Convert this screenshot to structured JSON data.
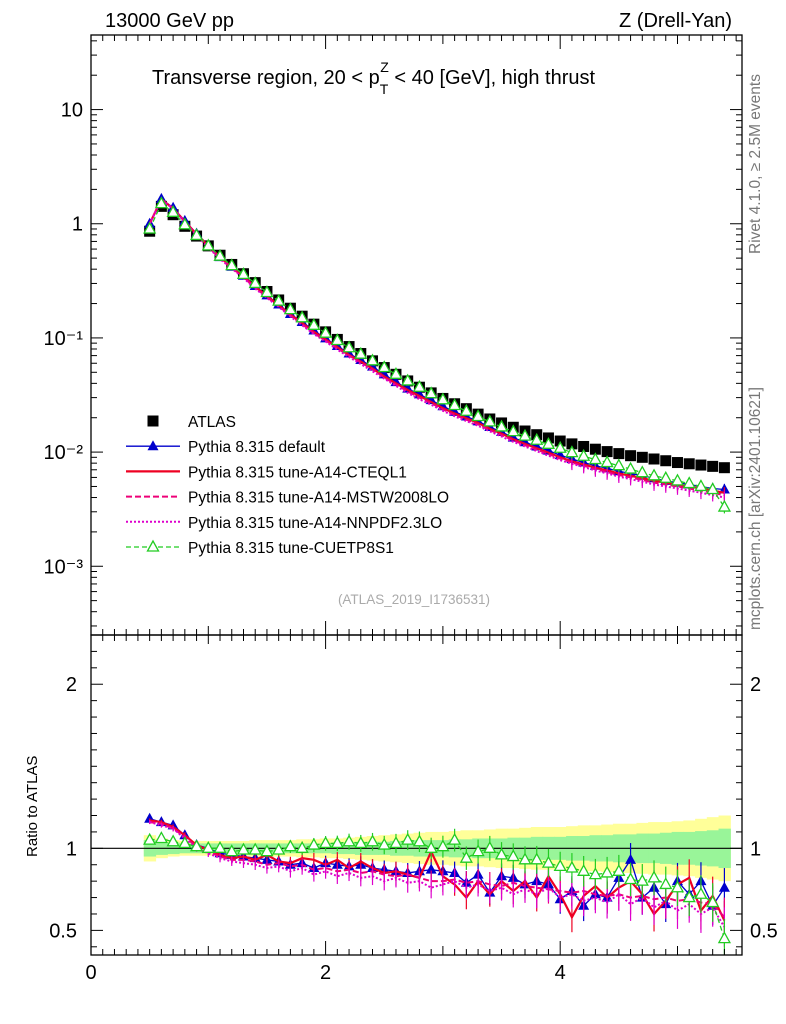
{
  "header": {
    "left": "13000 GeV pp",
    "right": "Z (Drell-Yan)"
  },
  "plot_title": {
    "pre": "Transverse region, 20 < p",
    "sub": "T",
    "sup": "Z",
    "post": " < 40 [GeV], high thrust"
  },
  "side_labels": {
    "rivet": "Rivet 4.1.0, ≥ 2.5M events",
    "mcplots": "mcplots.cern.ch [arXiv:2401.10621]"
  },
  "analysis_id": "(ATLAS_2019_I1736531)",
  "ratio_ylabel": "Ratio to ATLAS",
  "colors": {
    "atlas": "#000000",
    "default": "#0000cc",
    "cteql1": "#ee0022",
    "mstw": "#ee0077",
    "nnpdf": "#dd00cc",
    "cuetp8s1": "#22cc22",
    "band_inner": "#99f599",
    "band_outer": "#ffff99"
  },
  "chart_data": [
    {
      "type": "scatter",
      "panel": "main",
      "yscale": "log",
      "xlim": [
        0,
        5.55
      ],
      "ylim": [
        0.00025,
        45
      ],
      "y_ticks": [
        "10⁻³",
        "10⁻²",
        "10⁻¹",
        "1",
        "10"
      ],
      "y_tick_values": [
        0.001,
        0.01,
        0.1,
        1,
        10
      ],
      "x": [
        0.5,
        0.6,
        0.7,
        0.8,
        0.9,
        1.0,
        1.1,
        1.2,
        1.3,
        1.4,
        1.5,
        1.6,
        1.7,
        1.8,
        1.9,
        2.0,
        2.1,
        2.2,
        2.3,
        2.4,
        2.5,
        2.6,
        2.7,
        2.8,
        2.9,
        3.0,
        3.1,
        3.2,
        3.3,
        3.4,
        3.5,
        3.6,
        3.7,
        3.8,
        3.9,
        4.0,
        4.1,
        4.2,
        4.3,
        4.4,
        4.5,
        4.6,
        4.7,
        4.8,
        4.9,
        5.0,
        5.1,
        5.2,
        5.3,
        5.4
      ],
      "series": [
        {
          "name": "ATLAS",
          "style": "atlas",
          "values": [
            0.86,
            1.42,
            1.2,
            0.95,
            0.78,
            0.64,
            0.53,
            0.44,
            0.365,
            0.305,
            0.255,
            0.215,
            0.182,
            0.155,
            0.132,
            0.113,
            0.097,
            0.084,
            0.073,
            0.063,
            0.055,
            0.048,
            0.042,
            0.037,
            0.033,
            0.0295,
            0.0265,
            0.024,
            0.0215,
            0.0195,
            0.018,
            0.0165,
            0.0153,
            0.0142,
            0.0133,
            0.0125,
            0.0118,
            0.0112,
            0.0106,
            0.0101,
            0.0097,
            0.0093,
            0.009,
            0.0087,
            0.0084,
            0.0081,
            0.0079,
            0.0077,
            0.0075,
            0.0073
          ]
        },
        {
          "name": "Pythia 8.315 default",
          "style": "default",
          "values": [
            1.0,
            1.65,
            1.38,
            1.06,
            0.82,
            0.65,
            0.51,
            0.42,
            0.35,
            0.285,
            0.236,
            0.196,
            0.162,
            0.138,
            0.116,
            0.099,
            0.085,
            0.073,
            0.064,
            0.056,
            0.048,
            0.041,
            0.036,
            0.032,
            0.0285,
            0.0252,
            0.0225,
            0.0205,
            0.0186,
            0.0166,
            0.015,
            0.0134,
            0.0122,
            0.0112,
            0.0103,
            0.0094,
            0.0087,
            0.0081,
            0.0076,
            0.0072,
            0.0068,
            0.0065,
            0.0062,
            0.0059,
            0.0056,
            0.0054,
            0.0052,
            0.005,
            0.0048,
            0.0047
          ]
        },
        {
          "name": "Pythia 8.315 tune-A14-CTEQL1",
          "style": "cteql1",
          "values": [
            1.0,
            1.64,
            1.36,
            1.05,
            0.81,
            0.64,
            0.51,
            0.415,
            0.345,
            0.28,
            0.233,
            0.193,
            0.16,
            0.135,
            0.113,
            0.097,
            0.083,
            0.071,
            0.062,
            0.054,
            0.046,
            0.04,
            0.035,
            0.031,
            0.0275,
            0.0243,
            0.0218,
            0.0198,
            0.018,
            0.016,
            0.0145,
            0.013,
            0.0118,
            0.0108,
            0.0099,
            0.009,
            0.0083,
            0.0078,
            0.0073,
            0.0069,
            0.0065,
            0.0062,
            0.0059,
            0.0056,
            0.0054,
            0.0052,
            0.005,
            0.0048,
            0.0046,
            0.0044
          ]
        },
        {
          "name": "Pythia 8.315 tune-A14-MSTW2008LO",
          "style": "mstw",
          "values": [
            1.0,
            1.63,
            1.36,
            1.04,
            0.8,
            0.63,
            0.5,
            0.41,
            0.34,
            0.275,
            0.228,
            0.19,
            0.157,
            0.132,
            0.11,
            0.095,
            0.081,
            0.07,
            0.061,
            0.053,
            0.045,
            0.039,
            0.034,
            0.03,
            0.0268,
            0.0237,
            0.0212,
            0.0192,
            0.0175,
            0.0156,
            0.0141,
            0.0127,
            0.0115,
            0.0105,
            0.0096,
            0.0088,
            0.0081,
            0.0076,
            0.0071,
            0.0067,
            0.0063,
            0.006,
            0.0057,
            0.0054,
            0.0052,
            0.005,
            0.0048,
            0.0046,
            0.0044,
            0.0042
          ]
        },
        {
          "name": "Pythia 8.315 tune-A14-NNPDF2.3LO",
          "style": "nnpdf",
          "values": [
            1.0,
            1.62,
            1.35,
            1.03,
            0.79,
            0.62,
            0.49,
            0.405,
            0.335,
            0.27,
            0.224,
            0.187,
            0.154,
            0.129,
            0.108,
            0.093,
            0.079,
            0.068,
            0.059,
            0.051,
            0.044,
            0.038,
            0.033,
            0.029,
            0.026,
            0.023,
            0.0206,
            0.0187,
            0.017,
            0.0152,
            0.0137,
            0.0123,
            0.0112,
            0.0102,
            0.0093,
            0.0085,
            0.0079,
            0.0074,
            0.0069,
            0.0065,
            0.0061,
            0.0058,
            0.0055,
            0.0052,
            0.005,
            0.0048,
            0.0046,
            0.0044,
            0.0042,
            0.004
          ]
        },
        {
          "name": "Pythia 8.315 tune-CUETP8S1",
          "style": "cuetp8s1",
          "values": [
            0.9,
            1.5,
            1.26,
            0.98,
            0.79,
            0.64,
            0.52,
            0.43,
            0.36,
            0.3,
            0.25,
            0.21,
            0.177,
            0.15,
            0.129,
            0.11,
            0.095,
            0.082,
            0.072,
            0.063,
            0.055,
            0.048,
            0.042,
            0.037,
            0.0325,
            0.0287,
            0.0256,
            0.0228,
            0.0205,
            0.0184,
            0.0166,
            0.0151,
            0.0138,
            0.0127,
            0.0117,
            0.0108,
            0.0099,
            0.0092,
            0.0086,
            0.0081,
            0.0076,
            0.0071,
            0.0066,
            0.0062,
            0.0059,
            0.0056,
            0.0053,
            0.005,
            0.0047,
            0.0033
          ]
        }
      ]
    },
    {
      "type": "line",
      "panel": "ratio",
      "xlabel": "",
      "ylabel": "Ratio to ATLAS",
      "xlim": [
        0,
        5.55
      ],
      "ylim": [
        0.35,
        2.3
      ],
      "x_ticks": [
        "0",
        "2",
        "4"
      ],
      "x_tick_values": [
        0,
        2,
        4
      ],
      "y_ticks": [
        "0.5",
        "1",
        "2"
      ],
      "y_tick_values": [
        0.5,
        1,
        2
      ],
      "x": [
        0.5,
        0.6,
        0.7,
        0.8,
        0.9,
        1.0,
        1.1,
        1.2,
        1.3,
        1.4,
        1.5,
        1.6,
        1.7,
        1.8,
        1.9,
        2.0,
        2.1,
        2.2,
        2.3,
        2.4,
        2.5,
        2.6,
        2.7,
        2.8,
        2.9,
        3.0,
        3.1,
        3.2,
        3.3,
        3.4,
        3.5,
        3.6,
        3.7,
        3.8,
        3.9,
        4.0,
        4.1,
        4.2,
        4.3,
        4.4,
        4.5,
        4.6,
        4.7,
        4.8,
        4.9,
        5.0,
        5.1,
        5.2,
        5.3,
        5.4
      ],
      "band_inner": [
        0.05,
        0.04,
        0.035,
        0.03,
        0.03,
        0.03,
        0.03,
        0.03,
        0.03,
        0.03,
        0.03,
        0.03,
        0.03,
        0.03,
        0.03,
        0.03,
        0.035,
        0.035,
        0.04,
        0.04,
        0.04,
        0.045,
        0.045,
        0.05,
        0.05,
        0.05,
        0.055,
        0.055,
        0.06,
        0.06,
        0.06,
        0.065,
        0.065,
        0.07,
        0.07,
        0.07,
        0.075,
        0.075,
        0.08,
        0.08,
        0.085,
        0.085,
        0.09,
        0.09,
        0.095,
        0.1,
        0.1,
        0.105,
        0.11,
        0.12
      ],
      "band_outer": [
        0.08,
        0.06,
        0.05,
        0.045,
        0.045,
        0.045,
        0.045,
        0.045,
        0.045,
        0.05,
        0.05,
        0.05,
        0.05,
        0.055,
        0.055,
        0.06,
        0.06,
        0.065,
        0.07,
        0.075,
        0.08,
        0.085,
        0.09,
        0.095,
        0.1,
        0.1,
        0.105,
        0.11,
        0.11,
        0.115,
        0.12,
        0.12,
        0.125,
        0.13,
        0.13,
        0.13,
        0.135,
        0.14,
        0.14,
        0.145,
        0.15,
        0.15,
        0.155,
        0.16,
        0.16,
        0.165,
        0.17,
        0.18,
        0.19,
        0.2
      ],
      "series": [
        {
          "name": "Pythia 8.315 default",
          "style": "default",
          "values": [
            1.18,
            1.16,
            1.14,
            1.08,
            1.02,
            1.0,
            0.97,
            0.96,
            0.95,
            0.94,
            0.93,
            0.92,
            0.9,
            0.91,
            0.88,
            0.91,
            0.9,
            0.89,
            0.9,
            0.88,
            0.87,
            0.86,
            0.85,
            0.86,
            0.87,
            0.86,
            0.85,
            0.79,
            0.84,
            0.73,
            0.83,
            0.82,
            0.78,
            0.8,
            0.78,
            0.69,
            0.74,
            0.65,
            0.72,
            0.7,
            0.82,
            0.93,
            0.7,
            0.76,
            0.66,
            0.8,
            0.72,
            0.8,
            0.65,
            0.76
          ]
        },
        {
          "name": "Pythia 8.315 tune-A14-CTEQL1",
          "style": "cteql1",
          "values": [
            1.17,
            1.16,
            1.13,
            1.08,
            1.02,
            0.99,
            0.96,
            0.94,
            0.95,
            0.93,
            0.96,
            0.92,
            0.91,
            0.94,
            0.93,
            0.9,
            0.93,
            0.88,
            0.92,
            0.88,
            0.85,
            0.86,
            0.84,
            0.82,
            0.98,
            0.83,
            0.78,
            0.7,
            0.8,
            0.72,
            0.8,
            0.74,
            0.8,
            0.7,
            0.83,
            0.72,
            0.58,
            0.71,
            0.77,
            0.7,
            0.76,
            0.8,
            0.72,
            0.6,
            0.68,
            0.78,
            0.82,
            0.62,
            0.71,
            0.56
          ]
        },
        {
          "name": "Pythia 8.315 tune-A14-MSTW2008LO",
          "style": "mstw",
          "values": [
            1.16,
            1.15,
            1.12,
            1.07,
            1.01,
            0.98,
            0.95,
            0.93,
            0.93,
            0.92,
            0.9,
            0.91,
            0.89,
            0.9,
            0.87,
            0.88,
            0.86,
            0.87,
            0.85,
            0.86,
            0.84,
            0.83,
            0.84,
            0.82,
            0.8,
            0.8,
            0.81,
            0.79,
            0.8,
            0.78,
            0.77,
            0.79,
            0.77,
            0.76,
            0.75,
            0.74,
            0.73,
            0.74,
            0.72,
            0.71,
            0.72,
            0.7,
            0.71,
            0.69,
            0.7,
            0.68,
            0.69,
            0.67,
            0.66,
            0.58
          ]
        },
        {
          "name": "Pythia 8.315 tune-A14-NNPDF2.3LO",
          "style": "nnpdf",
          "values": [
            1.16,
            1.14,
            1.12,
            1.06,
            1.0,
            0.97,
            0.94,
            0.92,
            0.91,
            0.9,
            0.88,
            0.89,
            0.86,
            0.88,
            0.84,
            0.86,
            0.83,
            0.85,
            0.82,
            0.83,
            0.8,
            0.82,
            0.79,
            0.8,
            0.76,
            0.78,
            0.8,
            0.76,
            0.78,
            0.74,
            0.76,
            0.72,
            0.75,
            0.72,
            0.76,
            0.7,
            0.72,
            0.68,
            0.7,
            0.67,
            0.72,
            0.66,
            0.7,
            0.64,
            0.68,
            0.62,
            0.66,
            0.6,
            0.64,
            0.52
          ]
        },
        {
          "name": "Pythia 8.315 tune-CUETP8S1",
          "style": "cuetp8s1",
          "values": [
            1.05,
            1.06,
            1.04,
            1.03,
            1.01,
            1.0,
            1.0,
            0.98,
            0.99,
            0.99,
            0.98,
            0.99,
            1.01,
            1.0,
            1.02,
            1.03,
            1.03,
            1.04,
            1.03,
            1.04,
            1.02,
            1.03,
            1.05,
            1.04,
            1.0,
            1.01,
            1.05,
            0.94,
            0.98,
            1.0,
            0.96,
            0.95,
            0.93,
            0.93,
            0.91,
            0.89,
            0.88,
            0.86,
            0.84,
            0.85,
            0.86,
            0.81,
            0.8,
            0.82,
            0.78,
            0.76,
            0.7,
            0.72,
            0.67,
            0.45
          ]
        }
      ]
    }
  ],
  "legend": {
    "placement": "middle-left",
    "entries": [
      {
        "label": "ATLAS",
        "style": "atlas"
      },
      {
        "label": "Pythia 8.315 default",
        "style": "default"
      },
      {
        "label": "Pythia 8.315 tune-A14-CTEQL1",
        "style": "cteql1"
      },
      {
        "label": "Pythia 8.315 tune-A14-MSTW2008LO",
        "style": "mstw"
      },
      {
        "label": "Pythia 8.315 tune-A14-NNPDF2.3LO",
        "style": "nnpdf"
      },
      {
        "label": "Pythia 8.315 tune-CUETP8S1",
        "style": "cuetp8s1"
      }
    ]
  }
}
